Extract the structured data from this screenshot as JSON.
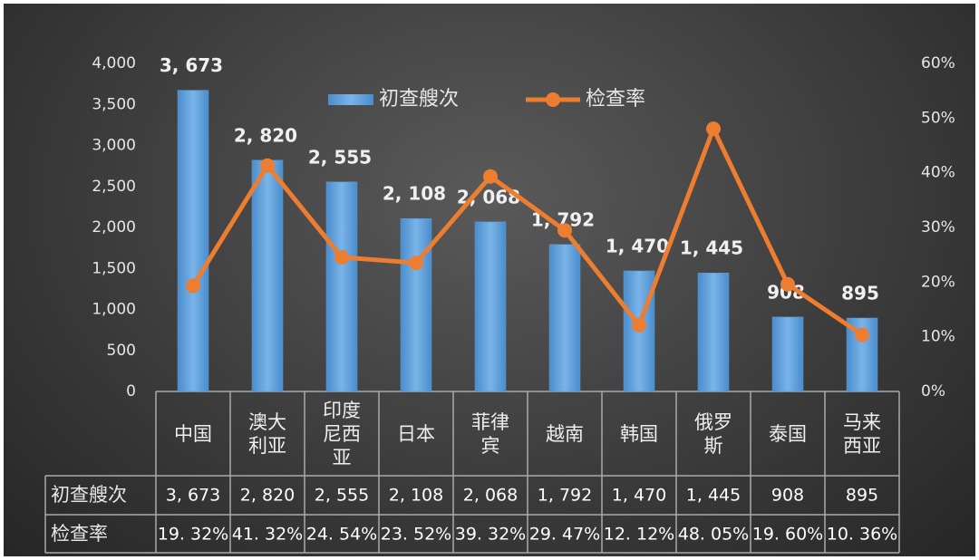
{
  "chart_data": {
    "type": "bar_line",
    "categories": [
      "中国",
      "澳大利亚",
      "印度尼西亚",
      "日本",
      "菲律宾",
      "越南",
      "韩国",
      "俄罗斯",
      "泰国",
      "马来西亚"
    ],
    "series": [
      {
        "name": "初查艘次",
        "type": "bar",
        "color": "#5b9bd5",
        "values": [
          3673,
          2820,
          2555,
          2108,
          2068,
          1792,
          1470,
          1445,
          908,
          895
        ],
        "value_labels": [
          "3, 673",
          "2, 820",
          "2, 555",
          "2, 108",
          "2, 068",
          "1, 792",
          "1, 470",
          "1, 445",
          "908",
          "895"
        ]
      },
      {
        "name": "检查率",
        "type": "line",
        "axis": "y2",
        "color": "#ed7d31",
        "values": [
          19.32,
          41.32,
          24.54,
          23.52,
          39.32,
          29.47,
          12.12,
          48.05,
          19.6,
          10.36
        ],
        "value_labels": [
          "19. 32%",
          "41. 32%",
          "24. 54%",
          "23. 52%",
          "39. 32%",
          "29. 47%",
          "12. 12%",
          "48. 05%",
          "19. 60%",
          "10. 36%"
        ]
      }
    ],
    "ylim": [
      0,
      4000
    ],
    "yticks": [
      0,
      500,
      {
        "value": 1000,
        "label": "1,000"
      },
      {
        "value": 1500,
        "label": "1,500"
      },
      {
        "value": 2000,
        "label": "2,000"
      },
      {
        "value": 2500,
        "label": "2,500"
      },
      {
        "value": 3000,
        "label": "3,000"
      },
      {
        "value": 3500,
        "label": "3,500"
      },
      {
        "value": 4000,
        "label": "4,000"
      }
    ],
    "y2lim": [
      0,
      60
    ],
    "y2ticks": [
      {
        "value": 0,
        "label": "0%"
      },
      {
        "value": 10,
        "label": "10%"
      },
      {
        "value": 20,
        "label": "20%"
      },
      {
        "value": 30,
        "label": "30%"
      },
      {
        "value": 40,
        "label": "40%"
      },
      {
        "value": 50,
        "label": "50%"
      },
      {
        "value": 60,
        "label": "60%"
      }
    ],
    "legend": "top",
    "grid": false
  }
}
